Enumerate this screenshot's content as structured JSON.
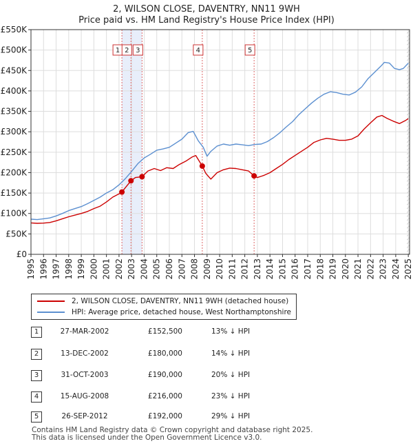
{
  "header": {
    "title_line1": "2, WILSON CLOSE, DAVENTRY, NN11 9WH",
    "title_line2": "Price paid vs. HM Land Registry's House Price Index (HPI)"
  },
  "legend": {
    "property_label": "2, WILSON CLOSE, DAVENTRY, NN11 9WH (detached house)",
    "hpi_label": "HPI: Average price, detached house, West Northamptonshire"
  },
  "sales": [
    {
      "num": "1",
      "date": "27-MAR-2002",
      "price": "£152,500",
      "pct": "13% ↓ HPI"
    },
    {
      "num": "2",
      "date": "13-DEC-2002",
      "price": "£180,000",
      "pct": "14% ↓ HPI"
    },
    {
      "num": "3",
      "date": "31-OCT-2003",
      "price": "£190,000",
      "pct": "20% ↓ HPI"
    },
    {
      "num": "4",
      "date": "15-AUG-2008",
      "price": "£216,000",
      "pct": "23% ↓ HPI"
    },
    {
      "num": "5",
      "date": "26-SEP-2012",
      "price": "£192,000",
      "pct": "29% ↓ HPI"
    }
  ],
  "footer": {
    "line1": "Contains HM Land Registry data © Crown copyright and database right 2025.",
    "line2": "This data is licensed under the Open Government Licence v3.0."
  },
  "chart_data": {
    "type": "line",
    "title": "2, WILSON CLOSE, DAVENTRY, NN11 9WH",
    "subtitle": "Price paid vs. HM Land Registry's House Price Index (HPI)",
    "xlabel": "",
    "ylabel": "",
    "xlim": [
      1995.0,
      2025.1
    ],
    "ylim": [
      0,
      550000
    ],
    "x_ticks": [
      1995,
      1996,
      1997,
      1998,
      1999,
      2000,
      2001,
      2002,
      2003,
      2004,
      2005,
      2006,
      2007,
      2008,
      2009,
      2010,
      2011,
      2012,
      2013,
      2014,
      2015,
      2016,
      2017,
      2018,
      2019,
      2020,
      2021,
      2022,
      2023,
      2024,
      2025
    ],
    "y_ticks": [
      0,
      50000,
      100000,
      150000,
      200000,
      250000,
      300000,
      350000,
      400000,
      450000,
      500000,
      550000
    ],
    "y_tick_labels": [
      "£0",
      "£50K",
      "£100K",
      "£150K",
      "£200K",
      "£250K",
      "£300K",
      "£350K",
      "£400K",
      "£450K",
      "£500K",
      "£550K"
    ],
    "grid": true,
    "colors": {
      "property": "#cc0000",
      "hpi": "#5b8fd0",
      "shade": "#e8eefa",
      "grid": "#dddddd",
      "marker_line": "#dd6666"
    },
    "series": [
      {
        "name": "2, WILSON CLOSE, DAVENTRY, NN11 9WH (detached house)",
        "x": [
          1995.0,
          1995.5,
          1996.0,
          1996.5,
          1997.0,
          1997.5,
          1998.0,
          1998.5,
          1999.0,
          1999.5,
          2000.0,
          2000.5,
          2001.0,
          2001.5,
          2002.0,
          2002.23,
          2002.5,
          2002.95,
          2003.3,
          2003.83,
          2004.3,
          2004.8,
          2005.3,
          2005.8,
          2006.3,
          2006.8,
          2007.3,
          2007.8,
          2008.1,
          2008.62,
          2008.9,
          2009.3,
          2009.8,
          2010.3,
          2010.8,
          2011.3,
          2011.8,
          2012.3,
          2012.74,
          2013.0,
          2013.5,
          2014.0,
          2014.5,
          2015.0,
          2015.5,
          2016.0,
          2016.5,
          2017.0,
          2017.5,
          2018.0,
          2018.5,
          2019.0,
          2019.5,
          2020.0,
          2020.5,
          2021.0,
          2021.5,
          2022.0,
          2022.5,
          2022.9,
          2023.3,
          2023.8,
          2024.3,
          2024.8,
          2025.0
        ],
        "y": [
          77000,
          76000,
          76500,
          78000,
          82000,
          87000,
          92000,
          96000,
          100000,
          105000,
          112000,
          118000,
          128000,
          140000,
          148000,
          152500,
          163000,
          180000,
          188000,
          190000,
          204000,
          210000,
          205000,
          212000,
          210000,
          220000,
          228000,
          238000,
          242000,
          216000,
          198000,
          184000,
          200000,
          207000,
          211000,
          210000,
          207000,
          204000,
          192000,
          188000,
          193000,
          200000,
          210000,
          220000,
          232000,
          242000,
          252000,
          262000,
          274000,
          280000,
          284000,
          282000,
          279000,
          279000,
          282000,
          290000,
          307000,
          322000,
          336000,
          340000,
          333000,
          326000,
          320000,
          328000,
          332000
        ]
      },
      {
        "name": "HPI: Average price, detached house, West Northamptonshire",
        "x": [
          1995.0,
          1995.5,
          1996.0,
          1996.5,
          1997.0,
          1997.5,
          1998.0,
          1998.5,
          1999.0,
          1999.5,
          2000.0,
          2000.5,
          2001.0,
          2001.5,
          2002.0,
          2002.5,
          2003.0,
          2003.5,
          2004.0,
          2004.5,
          2005.0,
          2005.5,
          2006.0,
          2006.5,
          2007.0,
          2007.5,
          2007.9,
          2008.3,
          2008.7,
          2009.0,
          2009.3,
          2009.8,
          2010.3,
          2010.8,
          2011.3,
          2011.8,
          2012.3,
          2012.8,
          2013.3,
          2013.8,
          2014.3,
          2014.8,
          2015.3,
          2015.8,
          2016.3,
          2016.8,
          2017.3,
          2017.8,
          2018.3,
          2018.8,
          2019.3,
          2019.8,
          2020.3,
          2020.8,
          2021.3,
          2021.8,
          2022.3,
          2022.8,
          2023.1,
          2023.5,
          2023.9,
          2024.3,
          2024.6,
          2025.0
        ],
        "y": [
          86000,
          85000,
          87000,
          89000,
          94000,
          100000,
          107000,
          112000,
          117000,
          124000,
          132000,
          140000,
          150000,
          158000,
          170000,
          185000,
          203000,
          222000,
          236000,
          245000,
          255000,
          258000,
          262000,
          272000,
          282000,
          298000,
          301000,
          278000,
          262000,
          240000,
          252000,
          265000,
          270000,
          267000,
          270000,
          268000,
          266000,
          269000,
          270000,
          276000,
          286000,
          298000,
          312000,
          325000,
          342000,
          356000,
          370000,
          382000,
          392000,
          398000,
          396000,
          392000,
          390000,
          397000,
          410000,
          430000,
          445000,
          460000,
          470000,
          468000,
          455000,
          452000,
          455000,
          468000
        ]
      }
    ],
    "sale_markers": [
      {
        "num": "1",
        "x": 2002.23,
        "y": 152500
      },
      {
        "num": "2",
        "x": 2002.95,
        "y": 180000
      },
      {
        "num": "3",
        "x": 2003.83,
        "y": 190000
      },
      {
        "num": "4",
        "x": 2008.62,
        "y": 216000
      },
      {
        "num": "5",
        "x": 2012.74,
        "y": 192000
      }
    ],
    "shaded_ranges": [
      [
        2002.23,
        2003.83
      ]
    ],
    "hatched_range": [
      2024.9,
      2025.1
    ]
  }
}
